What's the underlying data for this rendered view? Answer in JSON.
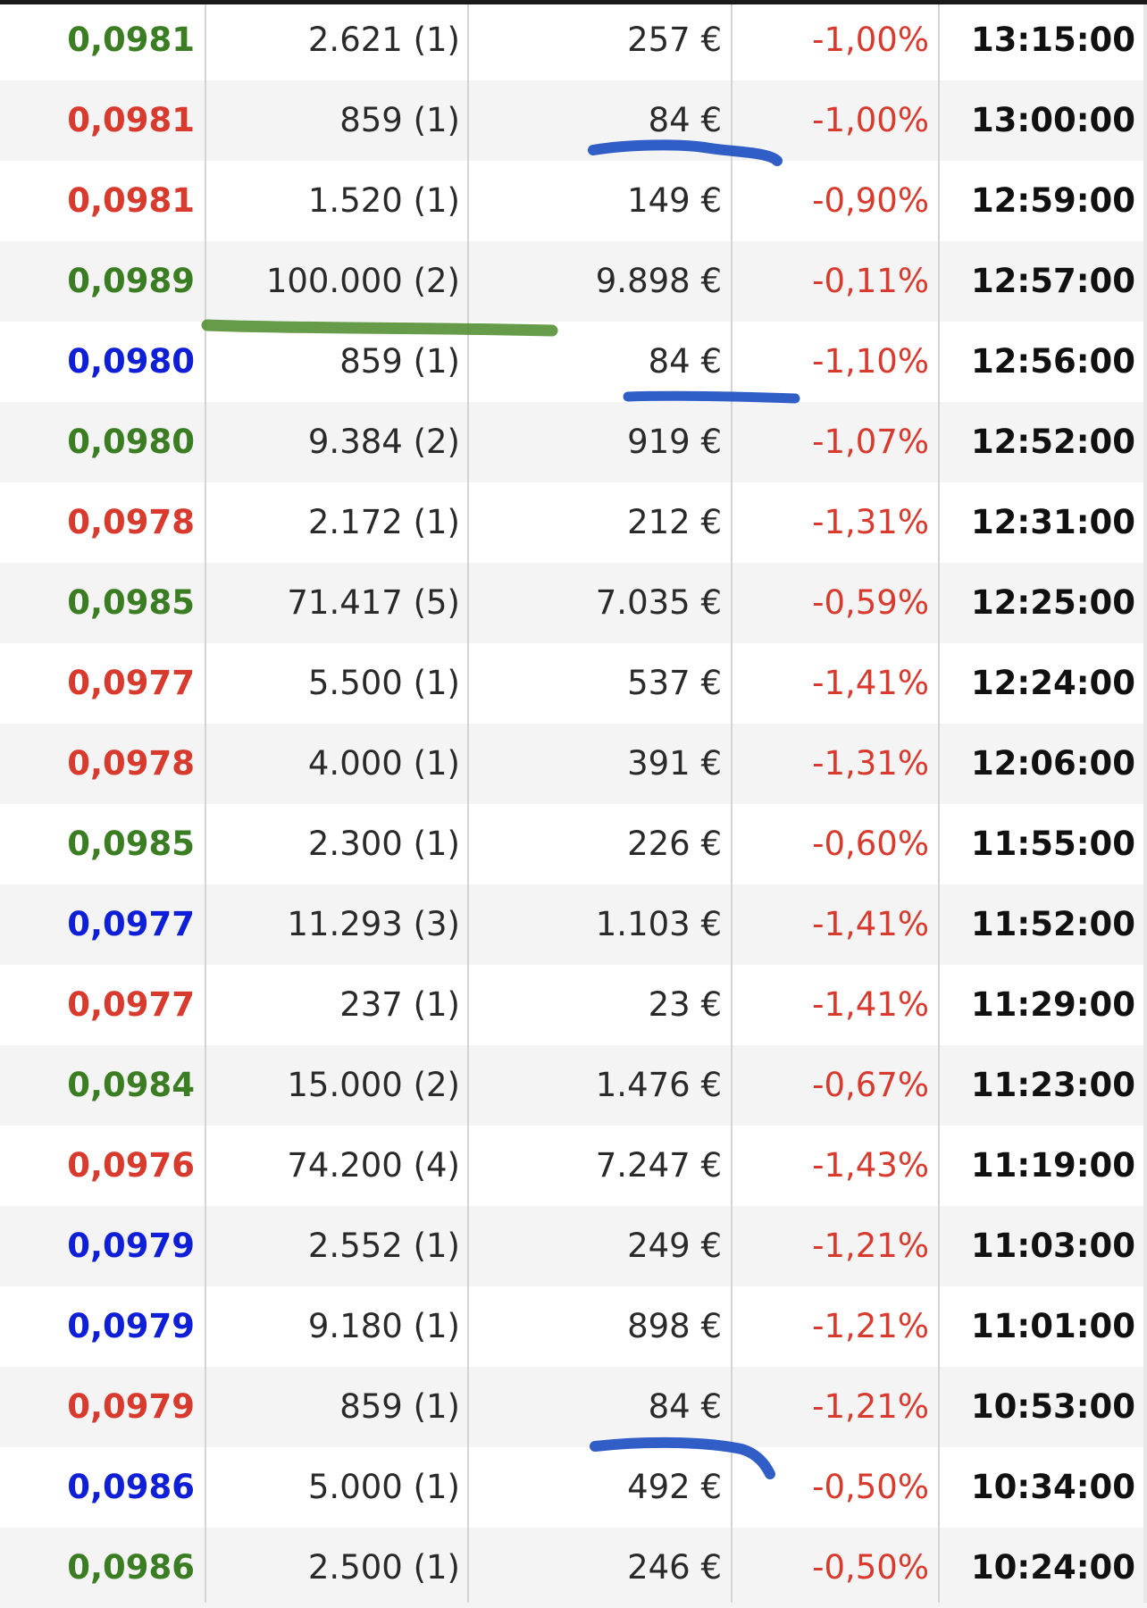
{
  "colors": {
    "up": "#3a7d22",
    "down": "#d83a2e",
    "neutral": "#0f1fd8",
    "change": "#d83a2e",
    "highlight_blue": "#1f4fc1",
    "highlight_green": "#4b8a2a"
  },
  "rows": [
    {
      "price": "0,0981",
      "dir": "up",
      "qty": "2.621 (1)",
      "value": "257 €",
      "change": "-1,00%",
      "time": "13:15:00"
    },
    {
      "price": "0,0981",
      "dir": "down",
      "qty": "859 (1)",
      "value": "84 €",
      "change": "-1,00%",
      "time": "13:00:00"
    },
    {
      "price": "0,0981",
      "dir": "down",
      "qty": "1.520 (1)",
      "value": "149 €",
      "change": "-0,90%",
      "time": "12:59:00"
    },
    {
      "price": "0,0989",
      "dir": "up",
      "qty": "100.000 (2)",
      "value": "9.898 €",
      "change": "-0,11%",
      "time": "12:57:00"
    },
    {
      "price": "0,0980",
      "dir": "neutral",
      "qty": "859 (1)",
      "value": "84 €",
      "change": "-1,10%",
      "time": "12:56:00"
    },
    {
      "price": "0,0980",
      "dir": "up",
      "qty": "9.384 (2)",
      "value": "919 €",
      "change": "-1,07%",
      "time": "12:52:00"
    },
    {
      "price": "0,0978",
      "dir": "down",
      "qty": "2.172 (1)",
      "value": "212 €",
      "change": "-1,31%",
      "time": "12:31:00"
    },
    {
      "price": "0,0985",
      "dir": "up",
      "qty": "71.417 (5)",
      "value": "7.035 €",
      "change": "-0,59%",
      "time": "12:25:00"
    },
    {
      "price": "0,0977",
      "dir": "down",
      "qty": "5.500 (1)",
      "value": "537 €",
      "change": "-1,41%",
      "time": "12:24:00"
    },
    {
      "price": "0,0978",
      "dir": "down",
      "qty": "4.000 (1)",
      "value": "391 €",
      "change": "-1,31%",
      "time": "12:06:00"
    },
    {
      "price": "0,0985",
      "dir": "up",
      "qty": "2.300 (1)",
      "value": "226 €",
      "change": "-0,60%",
      "time": "11:55:00"
    },
    {
      "price": "0,0977",
      "dir": "neutral",
      "qty": "11.293 (3)",
      "value": "1.103 €",
      "change": "-1,41%",
      "time": "11:52:00"
    },
    {
      "price": "0,0977",
      "dir": "down",
      "qty": "237 (1)",
      "value": "23 €",
      "change": "-1,41%",
      "time": "11:29:00"
    },
    {
      "price": "0,0984",
      "dir": "up",
      "qty": "15.000 (2)",
      "value": "1.476 €",
      "change": "-0,67%",
      "time": "11:23:00"
    },
    {
      "price": "0,0976",
      "dir": "down",
      "qty": "74.200 (4)",
      "value": "7.247 €",
      "change": "-1,43%",
      "time": "11:19:00"
    },
    {
      "price": "0,0979",
      "dir": "neutral",
      "qty": "2.552 (1)",
      "value": "249 €",
      "change": "-1,21%",
      "time": "11:03:00"
    },
    {
      "price": "0,0979",
      "dir": "neutral",
      "qty": "9.180 (1)",
      "value": "898 €",
      "change": "-1,21%",
      "time": "11:01:00"
    },
    {
      "price": "0,0979",
      "dir": "down",
      "qty": "859 (1)",
      "value": "84 €",
      "change": "-1,21%",
      "time": "10:53:00"
    },
    {
      "price": "0,0986",
      "dir": "neutral",
      "qty": "5.000 (1)",
      "value": "492 €",
      "change": "-0,50%",
      "time": "10:34:00"
    },
    {
      "price": "0,0986",
      "dir": "up",
      "qty": "2.500 (1)",
      "value": "246 €",
      "change": "-0,50%",
      "time": "10:24:00"
    }
  ]
}
